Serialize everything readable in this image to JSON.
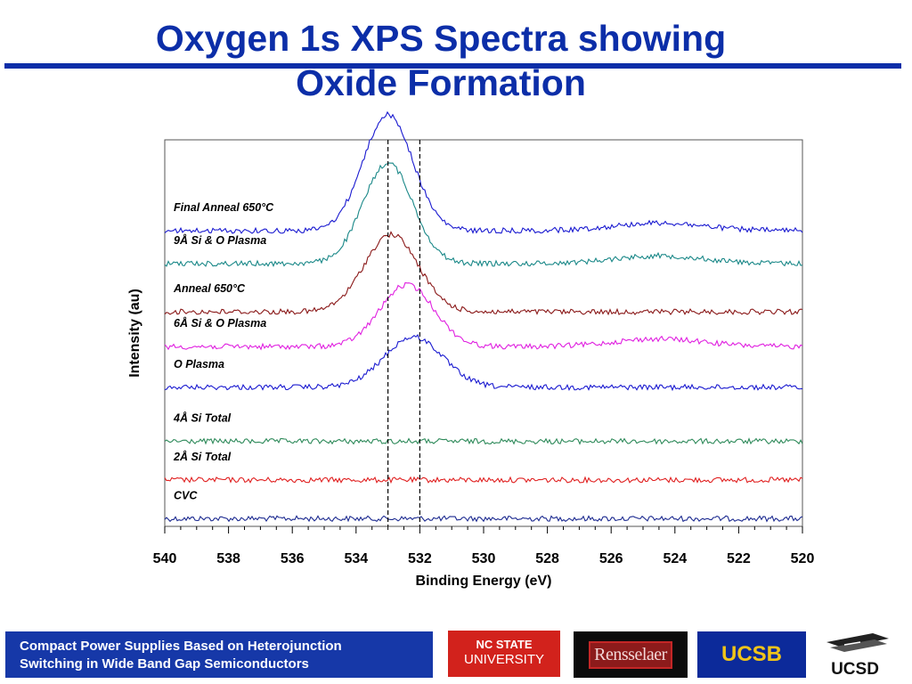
{
  "slide": {
    "title_line1": "Oxygen 1s XPS Spectra showing",
    "title_line2": "Oxide Formation",
    "footer_line1": "Compact Power Supplies Based on Heterojunction",
    "footer_line2": "Switching in Wide Band Gap Semiconductors",
    "logos": {
      "ncstate_line1": "NC STATE",
      "ncstate_line2": "UNIVERSITY",
      "rensselaer": "Rensselaer",
      "ucsb": "UCSB",
      "ucsd": "UCSD"
    }
  },
  "colors": {
    "title": "#0c2ea8",
    "footer_bg": "#1638a8",
    "ncstate_red": "#d2221c",
    "ucsb_blue": "#0c2a9a",
    "ucsb_gold": "#f0c419"
  },
  "chart_data": {
    "type": "line",
    "title": "",
    "xlabel": "Binding Energy (eV)",
    "ylabel": "Intensity (au)",
    "xlim": [
      540,
      520
    ],
    "x_reversed": true,
    "x_ticks": [
      540,
      538,
      536,
      534,
      532,
      530,
      528,
      526,
      524,
      522,
      520
    ],
    "reference_lines_x": [
      533.0,
      532.0
    ],
    "series": [
      {
        "name": "CVC",
        "color": "#1c2a90",
        "baseline": 0.02,
        "peaks": []
      },
      {
        "name": "2Å Si Total",
        "color": "#e02020",
        "baseline": 0.12,
        "peaks": []
      },
      {
        "name": "4Å Si Total",
        "color": "#2e8a5a",
        "baseline": 0.22,
        "peaks": []
      },
      {
        "name": "O Plasma",
        "color": "#1a1ad0",
        "baseline": 0.36,
        "peaks": [
          {
            "center": 532.2,
            "height": 0.13,
            "width": 1.3
          }
        ]
      },
      {
        "name": "6Å Si & O Plasma",
        "color": "#e020e0",
        "baseline": 0.465,
        "peaks": [
          {
            "center": 532.4,
            "height": 0.16,
            "width": 1.2
          },
          {
            "center": 524.5,
            "height": 0.02,
            "width": 2.0
          }
        ]
      },
      {
        "name": "Anneal 650°C",
        "color": "#8a1818",
        "baseline": 0.555,
        "peaks": [
          {
            "center": 532.9,
            "height": 0.2,
            "width": 1.2
          }
        ]
      },
      {
        "name": "9Å Si & O Plasma",
        "color": "#1a8888",
        "baseline": 0.68,
        "peaks": [
          {
            "center": 533.0,
            "height": 0.26,
            "width": 1.1
          },
          {
            "center": 524.5,
            "height": 0.02,
            "width": 2.0
          }
        ]
      },
      {
        "name": "Final Anneal 650°C",
        "color": "#1a1ad0",
        "baseline": 0.765,
        "peaks": [
          {
            "center": 533.0,
            "height": 0.3,
            "width": 1.1
          },
          {
            "center": 524.5,
            "height": 0.02,
            "width": 2.0
          }
        ]
      }
    ],
    "grid": false,
    "legend": "inline labels at left"
  }
}
